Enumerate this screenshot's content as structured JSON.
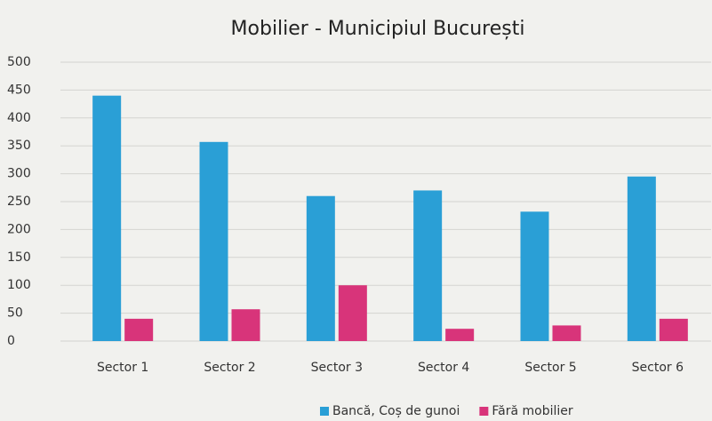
{
  "chart_data": {
    "type": "bar",
    "title": "Mobilier - Municipiul București",
    "categories": [
      "Sector 1",
      "Sector 2",
      "Sector 3",
      "Sector 4",
      "Sector 5",
      "Sector 6"
    ],
    "series": [
      {
        "name": "Bancă, Coș de gunoi",
        "color": "#2a9fd6",
        "values": [
          440,
          357,
          260,
          270,
          232,
          295
        ]
      },
      {
        "name": "Fără mobilier",
        "color": "#d8347a",
        "values": [
          40,
          57,
          100,
          22,
          28,
          40
        ]
      }
    ],
    "ylim": [
      0,
      500
    ],
    "yticks": [
      0,
      50,
      100,
      150,
      200,
      250,
      300,
      350,
      400,
      450,
      500
    ],
    "grid": true,
    "legend": "bottom"
  }
}
